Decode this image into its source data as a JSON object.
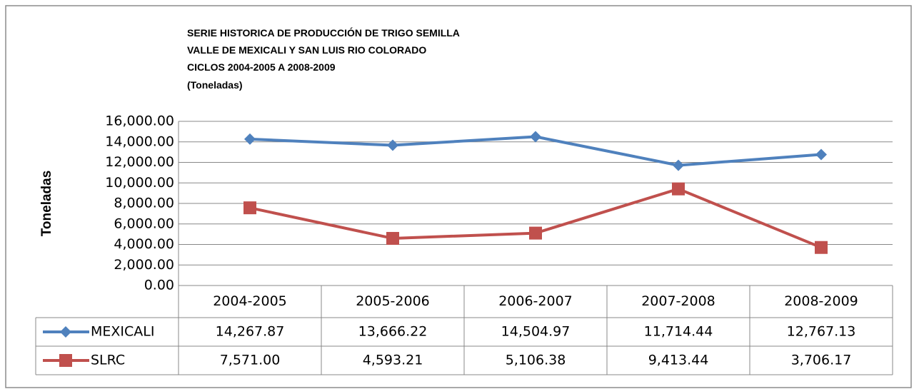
{
  "chart_data": {
    "type": "line",
    "title_lines": [
      "SERIE HISTORICA DE PRODUCCIÓN DE TRIGO SEMILLA",
      "VALLE DE MEXICALI Y SAN LUIS RIO COLORADO",
      "CICLOS 2004-2005 A 2008-2009",
      "(Toneladas)"
    ],
    "ylabel": "Toneladas",
    "categories": [
      "2004-2005",
      "2005-2006",
      "2006-2007",
      "2007-2008",
      "2008-2009"
    ],
    "series": [
      {
        "name": "MEXICALI",
        "color": "#4f81bd",
        "marker": "diamond",
        "values": [
          14267.87,
          13666.22,
          14504.97,
          11714.44,
          12767.13
        ],
        "value_labels": [
          "14,267.87",
          "13,666.22",
          "14,504.97",
          "11,714.44",
          "12,767.13"
        ]
      },
      {
        "name": "SLRC",
        "color": "#c0504d",
        "marker": "square",
        "values": [
          7571.0,
          4593.21,
          5106.38,
          9413.44,
          3706.17
        ],
        "value_labels": [
          "7,571.00",
          "4,593.21",
          "5,106.38",
          "9,413.44",
          "3,706.17"
        ]
      }
    ],
    "ylim": [
      0,
      16000
    ],
    "yticks": [
      {
        "value": 0,
        "label": "0.00"
      },
      {
        "value": 2000,
        "label": "2,000.00"
      },
      {
        "value": 4000,
        "label": "4,000.00"
      },
      {
        "value": 6000,
        "label": "6,000.00"
      },
      {
        "value": 8000,
        "label": "8,000.00"
      },
      {
        "value": 10000,
        "label": "10,000.00"
      },
      {
        "value": 12000,
        "label": "12,000.00"
      },
      {
        "value": 14000,
        "label": "14,000.00"
      },
      {
        "value": 16000,
        "label": "16,000.00"
      }
    ],
    "grid": true
  }
}
